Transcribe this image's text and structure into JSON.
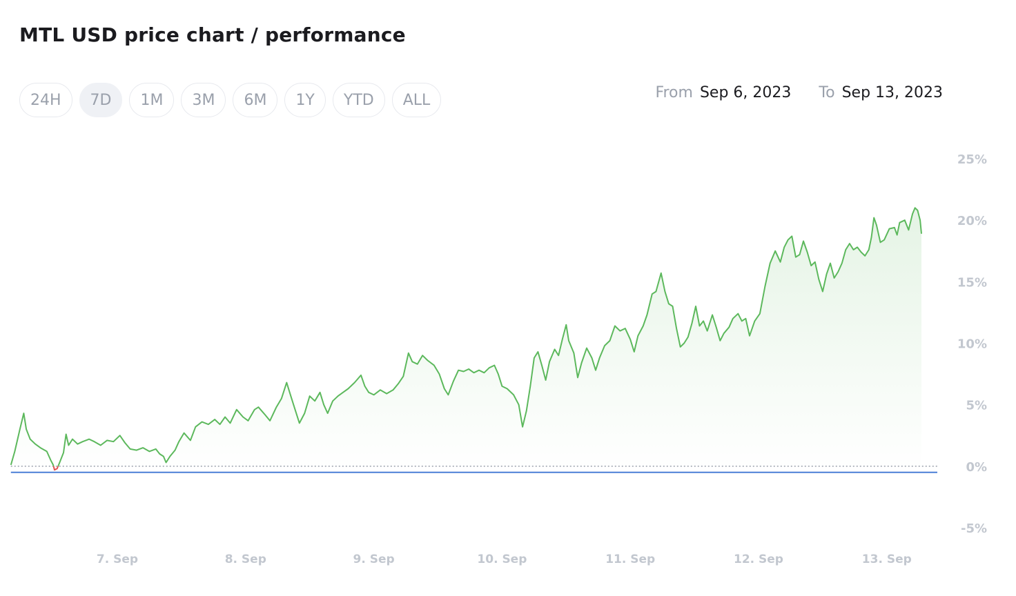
{
  "title": "MTL USD price chart / performance",
  "range_buttons": [
    {
      "label": "24H",
      "active": false
    },
    {
      "label": "7D",
      "active": true
    },
    {
      "label": "1M",
      "active": false
    },
    {
      "label": "3M",
      "active": false
    },
    {
      "label": "6M",
      "active": false
    },
    {
      "label": "1Y",
      "active": false
    },
    {
      "label": "YTD",
      "active": false
    },
    {
      "label": "ALL",
      "active": false
    }
  ],
  "date_range": {
    "from_label": "From",
    "from_value": "Sep 6, 2023",
    "to_label": "To",
    "to_value": "Sep 13, 2023"
  },
  "colors": {
    "line_up": "#5cb85c",
    "line_down": "#e05252",
    "baseline": "#4a7fd6",
    "zero_dotted": "#9aa0ab"
  },
  "chart_data": {
    "type": "area",
    "x_unit": "days since Sep 6, 2023 00:00",
    "y_unit": "%",
    "ylim": [
      -5,
      25
    ],
    "xlim": [
      0.17,
      7.38
    ],
    "y_ticks": [
      {
        "value": 25,
        "label": "25%"
      },
      {
        "value": 20,
        "label": "20%"
      },
      {
        "value": 15,
        "label": "15%"
      },
      {
        "value": 10,
        "label": "10%"
      },
      {
        "value": 5,
        "label": "5%"
      },
      {
        "value": 0,
        "label": "0%"
      },
      {
        "value": -5,
        "label": "-5%"
      }
    ],
    "x_ticks": [
      {
        "value": 1,
        "label": "7. Sep"
      },
      {
        "value": 2,
        "label": "8. Sep"
      },
      {
        "value": 3,
        "label": "9. Sep"
      },
      {
        "value": 4,
        "label": "10. Sep"
      },
      {
        "value": 5,
        "label": "11. Sep"
      },
      {
        "value": 6,
        "label": "12. Sep"
      },
      {
        "value": 7,
        "label": "13. Sep"
      }
    ],
    "baseline_value": -0.5,
    "grid": false,
    "legend": "none",
    "series": [
      {
        "points": [
          [
            0.17,
            0.1
          ],
          [
            0.2,
            1.2
          ],
          [
            0.24,
            3.0
          ],
          [
            0.27,
            4.3
          ],
          [
            0.29,
            3.0
          ],
          [
            0.32,
            2.2
          ],
          [
            0.36,
            1.8
          ],
          [
            0.4,
            1.5
          ],
          [
            0.45,
            1.2
          ],
          [
            0.48,
            0.5
          ],
          [
            0.5,
            0.1
          ],
          [
            0.51,
            -0.3
          ],
          [
            0.53,
            -0.2
          ],
          [
            0.55,
            0.3
          ],
          [
            0.58,
            1.1
          ],
          [
            0.6,
            2.6
          ],
          [
            0.62,
            1.7
          ],
          [
            0.65,
            2.2
          ],
          [
            0.69,
            1.8
          ],
          [
            0.73,
            2.0
          ],
          [
            0.78,
            2.2
          ],
          [
            0.82,
            2.0
          ],
          [
            0.87,
            1.7
          ],
          [
            0.92,
            2.1
          ],
          [
            0.97,
            2.0
          ],
          [
            1.02,
            2.5
          ],
          [
            1.06,
            1.9
          ],
          [
            1.1,
            1.4
          ],
          [
            1.15,
            1.3
          ],
          [
            1.2,
            1.5
          ],
          [
            1.25,
            1.2
          ],
          [
            1.3,
            1.4
          ],
          [
            1.33,
            1.0
          ],
          [
            1.36,
            0.8
          ],
          [
            1.38,
            0.3
          ],
          [
            1.41,
            0.8
          ],
          [
            1.45,
            1.3
          ],
          [
            1.48,
            2.0
          ],
          [
            1.52,
            2.7
          ],
          [
            1.57,
            2.1
          ],
          [
            1.61,
            3.2
          ],
          [
            1.66,
            3.6
          ],
          [
            1.71,
            3.4
          ],
          [
            1.76,
            3.8
          ],
          [
            1.8,
            3.4
          ],
          [
            1.84,
            4.0
          ],
          [
            1.88,
            3.5
          ],
          [
            1.93,
            4.6
          ],
          [
            1.98,
            4.0
          ],
          [
            2.02,
            3.7
          ],
          [
            2.07,
            4.6
          ],
          [
            2.1,
            4.8
          ],
          [
            2.15,
            4.2
          ],
          [
            2.19,
            3.7
          ],
          [
            2.24,
            4.8
          ],
          [
            2.28,
            5.5
          ],
          [
            2.32,
            6.8
          ],
          [
            2.35,
            5.8
          ],
          [
            2.38,
            4.8
          ],
          [
            2.42,
            3.5
          ],
          [
            2.46,
            4.3
          ],
          [
            2.5,
            5.7
          ],
          [
            2.54,
            5.3
          ],
          [
            2.58,
            6.0
          ],
          [
            2.61,
            5.0
          ],
          [
            2.64,
            4.3
          ],
          [
            2.68,
            5.3
          ],
          [
            2.72,
            5.7
          ],
          [
            2.76,
            6.0
          ],
          [
            2.8,
            6.3
          ],
          [
            2.85,
            6.8
          ],
          [
            2.9,
            7.4
          ],
          [
            2.93,
            6.5
          ],
          [
            2.96,
            6.0
          ],
          [
            3.0,
            5.8
          ],
          [
            3.05,
            6.2
          ],
          [
            3.1,
            5.9
          ],
          [
            3.15,
            6.2
          ],
          [
            3.19,
            6.7
          ],
          [
            3.23,
            7.3
          ],
          [
            3.27,
            9.2
          ],
          [
            3.3,
            8.5
          ],
          [
            3.34,
            8.3
          ],
          [
            3.38,
            9.0
          ],
          [
            3.42,
            8.6
          ],
          [
            3.47,
            8.2
          ],
          [
            3.51,
            7.5
          ],
          [
            3.55,
            6.3
          ],
          [
            3.58,
            5.8
          ],
          [
            3.62,
            6.9
          ],
          [
            3.66,
            7.8
          ],
          [
            3.7,
            7.7
          ],
          [
            3.74,
            7.9
          ],
          [
            3.78,
            7.6
          ],
          [
            3.82,
            7.8
          ],
          [
            3.86,
            7.6
          ],
          [
            3.9,
            8.0
          ],
          [
            3.94,
            8.2
          ],
          [
            3.97,
            7.5
          ],
          [
            4.0,
            6.5
          ],
          [
            4.04,
            6.3
          ],
          [
            4.09,
            5.8
          ],
          [
            4.13,
            5.0
          ],
          [
            4.16,
            3.2
          ],
          [
            4.19,
            4.5
          ],
          [
            4.22,
            6.5
          ],
          [
            4.25,
            8.8
          ],
          [
            4.28,
            9.3
          ],
          [
            4.31,
            8.2
          ],
          [
            4.34,
            7.0
          ],
          [
            4.37,
            8.5
          ],
          [
            4.41,
            9.5
          ],
          [
            4.44,
            9.0
          ],
          [
            4.47,
            10.3
          ],
          [
            4.5,
            11.5
          ],
          [
            4.52,
            10.2
          ],
          [
            4.56,
            9.2
          ],
          [
            4.59,
            7.2
          ],
          [
            4.62,
            8.4
          ],
          [
            4.66,
            9.6
          ],
          [
            4.7,
            8.8
          ],
          [
            4.73,
            7.8
          ],
          [
            4.76,
            8.8
          ],
          [
            4.8,
            9.8
          ],
          [
            4.84,
            10.2
          ],
          [
            4.88,
            11.4
          ],
          [
            4.92,
            11.0
          ],
          [
            4.96,
            11.2
          ],
          [
            5.0,
            10.3
          ],
          [
            5.03,
            9.3
          ],
          [
            5.06,
            10.6
          ],
          [
            5.1,
            11.4
          ],
          [
            5.13,
            12.3
          ],
          [
            5.17,
            14.0
          ],
          [
            5.2,
            14.2
          ],
          [
            5.24,
            15.7
          ],
          [
            5.27,
            14.2
          ],
          [
            5.3,
            13.2
          ],
          [
            5.33,
            13.0
          ],
          [
            5.36,
            11.2
          ],
          [
            5.39,
            9.7
          ],
          [
            5.42,
            10.0
          ],
          [
            5.45,
            10.5
          ],
          [
            5.48,
            11.6
          ],
          [
            5.51,
            13.0
          ],
          [
            5.54,
            11.4
          ],
          [
            5.57,
            11.8
          ],
          [
            5.6,
            11.0
          ],
          [
            5.64,
            12.3
          ],
          [
            5.67,
            11.3
          ],
          [
            5.7,
            10.2
          ],
          [
            5.73,
            10.8
          ],
          [
            5.77,
            11.3
          ],
          [
            5.8,
            12.0
          ],
          [
            5.84,
            12.4
          ],
          [
            5.87,
            11.8
          ],
          [
            5.9,
            12.0
          ],
          [
            5.93,
            10.6
          ],
          [
            5.97,
            11.8
          ],
          [
            6.01,
            12.4
          ],
          [
            6.05,
            14.6
          ],
          [
            6.09,
            16.5
          ],
          [
            6.13,
            17.5
          ],
          [
            6.17,
            16.6
          ],
          [
            6.2,
            17.8
          ],
          [
            6.23,
            18.4
          ],
          [
            6.26,
            18.7
          ],
          [
            6.29,
            17.0
          ],
          [
            6.32,
            17.2
          ],
          [
            6.35,
            18.3
          ],
          [
            6.38,
            17.4
          ],
          [
            6.41,
            16.3
          ],
          [
            6.44,
            16.6
          ],
          [
            6.47,
            15.2
          ],
          [
            6.5,
            14.2
          ],
          [
            6.53,
            15.6
          ],
          [
            6.56,
            16.5
          ],
          [
            6.59,
            15.3
          ],
          [
            6.62,
            15.8
          ],
          [
            6.65,
            16.5
          ],
          [
            6.68,
            17.6
          ],
          [
            6.71,
            18.1
          ],
          [
            6.74,
            17.6
          ],
          [
            6.77,
            17.8
          ],
          [
            6.8,
            17.4
          ],
          [
            6.83,
            17.1
          ],
          [
            6.86,
            17.6
          ],
          [
            6.88,
            18.6
          ],
          [
            6.9,
            20.2
          ],
          [
            6.92,
            19.6
          ],
          [
            6.95,
            18.2
          ],
          [
            6.98,
            18.4
          ],
          [
            7.02,
            19.3
          ],
          [
            7.06,
            19.4
          ],
          [
            7.08,
            18.8
          ],
          [
            7.1,
            19.8
          ],
          [
            7.14,
            20.0
          ],
          [
            7.17,
            19.2
          ],
          [
            7.2,
            20.5
          ],
          [
            7.22,
            21.0
          ],
          [
            7.24,
            20.8
          ],
          [
            7.26,
            20.0
          ],
          [
            7.27,
            18.9
          ]
        ]
      }
    ]
  }
}
